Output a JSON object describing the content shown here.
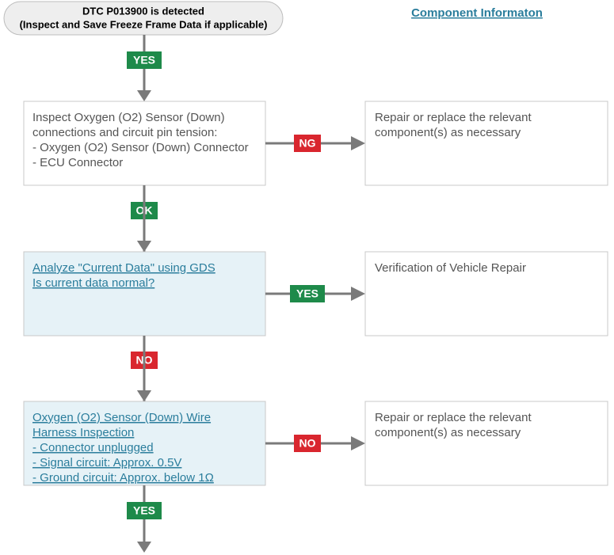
{
  "start": {
    "lines": [
      "DTC P013900 is detected",
      "(Inspect and Save Freeze Frame Data if applicable)"
    ]
  },
  "component_link": "Component Informaton",
  "steps": [
    {
      "label_in": "YES",
      "lines": [
        "Inspect Oxygen (O2) Sensor (Down)",
        "connections and circuit pin tension:",
        "- Oxygen (O2) Sensor (Down) Connector",
        "- ECU Connector"
      ],
      "branch_label": "NG",
      "result": [
        "Repair or replace the relevant",
        "component(s) as necessary"
      ]
    },
    {
      "label_in": "OK",
      "lines": [
        "Analyze \"Current Data\" using GDS",
        "Is current data normal?"
      ],
      "branch_label": "YES",
      "result": [
        "Verification of Vehicle Repair"
      ]
    },
    {
      "label_in": "NO",
      "lines": [
        "Oxygen (O2) Sensor (Down) Wire",
        "Harness Inspection",
        "- Connector unplugged",
        "- Signal circuit: Approx. 0.5V",
        "- Ground circuit: Approx. below 1Ω"
      ],
      "branch_label": "NO",
      "result": [
        "Repair or replace the relevant",
        "component(s) as necessary"
      ]
    }
  ],
  "end_label": "YES"
}
